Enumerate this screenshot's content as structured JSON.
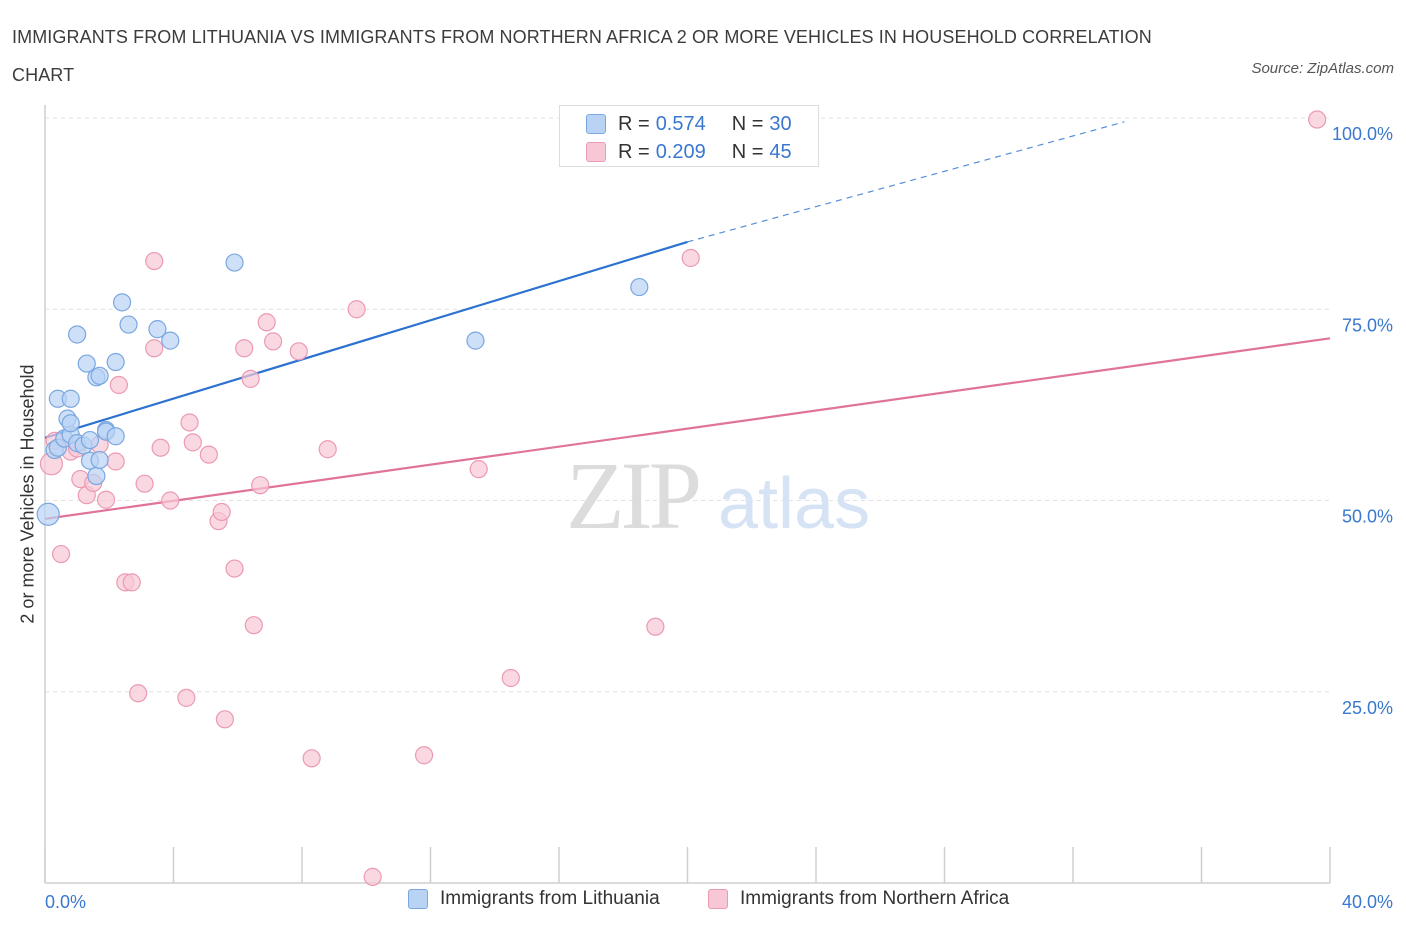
{
  "title": "IMMIGRANTS FROM LITHUANIA VS IMMIGRANTS FROM NORTHERN AFRICA 2 OR MORE VEHICLES IN HOUSEHOLD CORRELATION CHART",
  "source": "Source: ZipAtlas.com",
  "watermark": {
    "zip": "ZIP",
    "atlas": "atlas"
  },
  "colors": {
    "blue_fill": "#b9d3f5",
    "blue_stroke": "#7aa7e0",
    "blue_line": "#2c72d0",
    "pink_fill": "#f8c7d5",
    "pink_stroke": "#eb9ab2",
    "pink_line": "#e0739a",
    "tick_text": "#3a78d0"
  },
  "legend": {
    "series": [
      {
        "name": "Immigrants from Lithuania",
        "r_label": "R =",
        "r_value": "0.574",
        "n_label": "N =",
        "n_value": "30"
      },
      {
        "name": "Immigrants from Northern Africa",
        "r_label": "R =",
        "r_value": "0.209",
        "n_label": "N =",
        "n_value": "45"
      }
    ]
  },
  "chart_data": {
    "type": "scatter",
    "title": "IMMIGRANTS FROM LITHUANIA VS IMMIGRANTS FROM NORTHERN AFRICA 2 OR MORE VEHICLES IN HOUSEHOLD CORRELATION CHART",
    "xlabel": "",
    "ylabel": "2 or more Vehicles in Household",
    "xlim": [
      0,
      40
    ],
    "ylim": [
      0,
      100
    ],
    "x_tick_labels": [
      "0.0%",
      "40.0%"
    ],
    "y_ticks": [
      25,
      50,
      75,
      100
    ],
    "y_tick_labels": [
      "25.0%",
      "50.0%",
      "75.0%",
      "100.0%"
    ],
    "grid": true,
    "legend_position": "top-center",
    "series": [
      {
        "name": "Immigrants from Lithuania",
        "R": 0.574,
        "N": 30,
        "trend": {
          "x0": 0,
          "y0": 58.2,
          "x1": 20,
          "y1": 83.8,
          "dash_to_x": 33.6,
          "dash_to_y": 99.5
        },
        "points": [
          {
            "x": 0.1,
            "y": 48.2,
            "big": true
          },
          {
            "x": 0.3,
            "y": 56.6
          },
          {
            "x": 0.4,
            "y": 56.9
          },
          {
            "x": 0.6,
            "y": 58.1
          },
          {
            "x": 0.8,
            "y": 58.6
          },
          {
            "x": 1.0,
            "y": 57.5
          },
          {
            "x": 0.4,
            "y": 63.3
          },
          {
            "x": 0.8,
            "y": 63.3
          },
          {
            "x": 0.7,
            "y": 60.7
          },
          {
            "x": 0.8,
            "y": 60.1
          },
          {
            "x": 1.2,
            "y": 57.2
          },
          {
            "x": 1.3,
            "y": 67.9
          },
          {
            "x": 1.4,
            "y": 57.9
          },
          {
            "x": 1.0,
            "y": 71.7
          },
          {
            "x": 1.4,
            "y": 55.2
          },
          {
            "x": 1.6,
            "y": 66.1
          },
          {
            "x": 1.6,
            "y": 53.2
          },
          {
            "x": 1.7,
            "y": 55.3
          },
          {
            "x": 1.7,
            "y": 66.3
          },
          {
            "x": 1.9,
            "y": 59.2
          },
          {
            "x": 1.9,
            "y": 59.0
          },
          {
            "x": 2.2,
            "y": 68.1
          },
          {
            "x": 2.2,
            "y": 58.4
          },
          {
            "x": 2.4,
            "y": 75.9
          },
          {
            "x": 2.6,
            "y": 73.0
          },
          {
            "x": 3.5,
            "y": 72.4
          },
          {
            "x": 3.9,
            "y": 70.9
          },
          {
            "x": 5.9,
            "y": 81.1
          },
          {
            "x": 13.4,
            "y": 70.9
          },
          {
            "x": 18.5,
            "y": 77.9
          }
        ]
      },
      {
        "name": "Immigrants from Northern Africa",
        "R": 0.209,
        "N": 45,
        "trend": {
          "x0": 0,
          "y0": 47.6,
          "x1": 40,
          "y1": 71.2
        },
        "points": [
          {
            "x": 0.2,
            "y": 54.8,
            "big": true
          },
          {
            "x": 0.3,
            "y": 57.8
          },
          {
            "x": 0.5,
            "y": 43.0
          },
          {
            "x": 0.8,
            "y": 56.4
          },
          {
            "x": 1.0,
            "y": 56.8
          },
          {
            "x": 1.1,
            "y": 52.8
          },
          {
            "x": 1.3,
            "y": 50.7
          },
          {
            "x": 1.5,
            "y": 52.3
          },
          {
            "x": 1.7,
            "y": 57.3
          },
          {
            "x": 1.9,
            "y": 50.1
          },
          {
            "x": 2.2,
            "y": 55.1
          },
          {
            "x": 2.3,
            "y": 65.1
          },
          {
            "x": 2.5,
            "y": 39.3
          },
          {
            "x": 2.7,
            "y": 39.3
          },
          {
            "x": 2.9,
            "y": 24.8
          },
          {
            "x": 3.1,
            "y": 52.2
          },
          {
            "x": 3.4,
            "y": 81.3
          },
          {
            "x": 3.6,
            "y": 56.9
          },
          {
            "x": 3.9,
            "y": 50.0
          },
          {
            "x": 4.4,
            "y": 24.2
          },
          {
            "x": 4.5,
            "y": 60.2
          },
          {
            "x": 4.6,
            "y": 57.6
          },
          {
            "x": 5.1,
            "y": 56.0
          },
          {
            "x": 5.4,
            "y": 47.3
          },
          {
            "x": 5.5,
            "y": 48.5
          },
          {
            "x": 5.6,
            "y": 21.4
          },
          {
            "x": 5.9,
            "y": 41.1
          },
          {
            "x": 6.2,
            "y": 69.9
          },
          {
            "x": 6.4,
            "y": 65.9
          },
          {
            "x": 6.5,
            "y": 33.7
          },
          {
            "x": 6.7,
            "y": 52.0
          },
          {
            "x": 6.9,
            "y": 73.3
          },
          {
            "x": 7.1,
            "y": 70.8
          },
          {
            "x": 7.9,
            "y": 69.5
          },
          {
            "x": 8.3,
            "y": 16.3
          },
          {
            "x": 8.8,
            "y": 56.7
          },
          {
            "x": 9.7,
            "y": 75.0
          },
          {
            "x": 10.2,
            "y": 0.8
          },
          {
            "x": 11.8,
            "y": 16.7
          },
          {
            "x": 3.4,
            "y": 69.9
          },
          {
            "x": 13.5,
            "y": 54.1
          },
          {
            "x": 14.5,
            "y": 26.8
          },
          {
            "x": 19.0,
            "y": 33.5
          },
          {
            "x": 20.1,
            "y": 81.7
          },
          {
            "x": 39.6,
            "y": 99.8
          }
        ]
      }
    ]
  }
}
